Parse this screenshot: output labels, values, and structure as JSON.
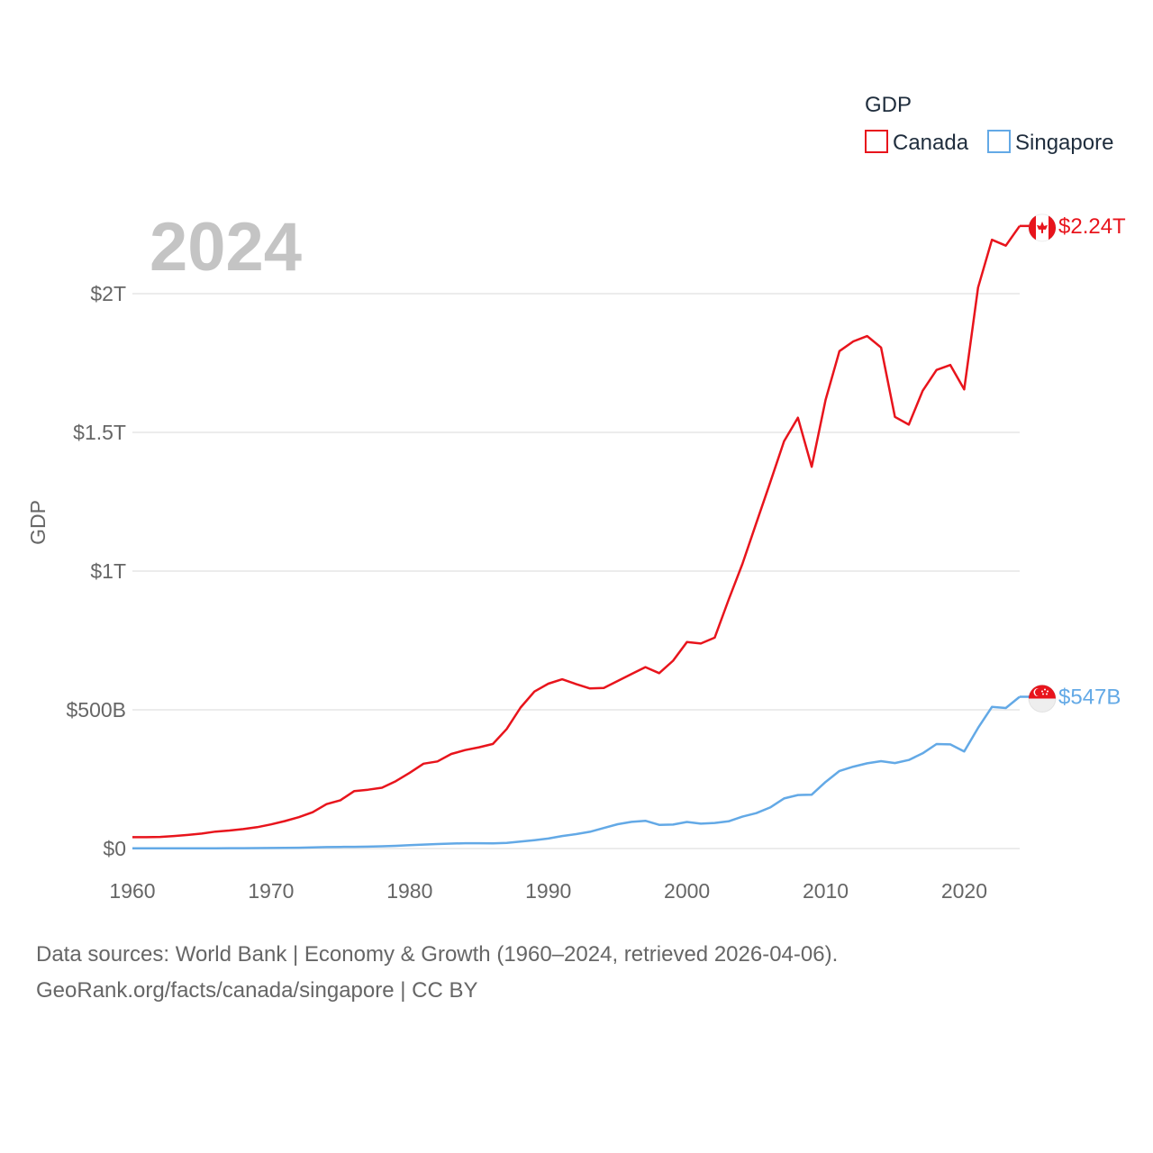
{
  "chart_data": {
    "type": "line",
    "title": "GDP",
    "ylabel": "GDP",
    "xlabel": "",
    "current_year_label": "2024",
    "x": [
      1960,
      1961,
      1962,
      1963,
      1964,
      1965,
      1966,
      1967,
      1968,
      1969,
      1970,
      1971,
      1972,
      1973,
      1974,
      1975,
      1976,
      1977,
      1978,
      1979,
      1980,
      1981,
      1982,
      1983,
      1984,
      1985,
      1986,
      1987,
      1988,
      1989,
      1990,
      1991,
      1992,
      1993,
      1994,
      1995,
      1996,
      1997,
      1998,
      1999,
      2000,
      2001,
      2002,
      2003,
      2004,
      2005,
      2006,
      2007,
      2008,
      2009,
      2010,
      2011,
      2012,
      2013,
      2014,
      2015,
      2016,
      2017,
      2018,
      2019,
      2020,
      2021,
      2022,
      2023,
      2024
    ],
    "xlim": [
      1960,
      2024
    ],
    "ylim": [
      0,
      2.3
    ],
    "y_unit": "trillion USD",
    "x_ticks": [
      1960,
      1970,
      1980,
      1990,
      2000,
      2010,
      2020
    ],
    "x_tick_labels": [
      "1960",
      "1970",
      "1980",
      "1990",
      "2000",
      "2010",
      "2020"
    ],
    "y_ticks": [
      0,
      0.5,
      1,
      1.5,
      2
    ],
    "y_tick_labels": [
      "$0",
      "$500B",
      "$1T",
      "$1.5T",
      "$2T"
    ],
    "grid": true,
    "legend_position": "top-right",
    "series": [
      {
        "name": "Canada",
        "color": "#e8141c",
        "end_label": "$2.24T",
        "flag": "canada-flag-icon",
        "values": [
          0.041,
          0.041,
          0.042,
          0.045,
          0.049,
          0.054,
          0.061,
          0.065,
          0.07,
          0.077,
          0.087,
          0.099,
          0.113,
          0.131,
          0.16,
          0.174,
          0.207,
          0.212,
          0.219,
          0.243,
          0.273,
          0.306,
          0.314,
          0.341,
          0.355,
          0.365,
          0.377,
          0.431,
          0.508,
          0.566,
          0.594,
          0.61,
          0.593,
          0.577,
          0.579,
          0.604,
          0.629,
          0.654,
          0.632,
          0.677,
          0.744,
          0.739,
          0.76,
          0.896,
          1.026,
          1.173,
          1.319,
          1.468,
          1.553,
          1.376,
          1.617,
          1.793,
          1.828,
          1.847,
          1.806,
          1.556,
          1.528,
          1.65,
          1.725,
          1.743,
          1.655,
          2.022,
          2.194,
          2.173,
          2.244
        ]
      },
      {
        "name": "Singapore",
        "color": "#63a9e6",
        "end_label": "$547B",
        "flag": "singapore-flag-icon",
        "values": [
          0.0007,
          0.0008,
          0.0009,
          0.001,
          0.0009,
          0.001,
          0.0011,
          0.0012,
          0.0013,
          0.0016,
          0.0019,
          0.0023,
          0.003,
          0.0042,
          0.0052,
          0.0059,
          0.0062,
          0.0067,
          0.008,
          0.0096,
          0.0119,
          0.0142,
          0.0161,
          0.0178,
          0.0193,
          0.019,
          0.0184,
          0.0204,
          0.025,
          0.0301,
          0.0362,
          0.0452,
          0.0521,
          0.0605,
          0.0739,
          0.0876,
          0.0961,
          0.1,
          0.0853,
          0.0864,
          0.0959,
          0.0896,
          0.0921,
          0.0979,
          0.115,
          0.1275,
          0.148,
          0.1806,
          0.1929,
          0.1941,
          0.2398,
          0.2797,
          0.2951,
          0.3071,
          0.3149,
          0.3082,
          0.3192,
          0.3431,
          0.3767,
          0.3753,
          0.35,
          0.4348,
          0.5105,
          0.5065,
          0.547
        ]
      }
    ]
  },
  "legend": {
    "title": "GDP",
    "items": [
      "Canada",
      "Singapore"
    ]
  },
  "footer": {
    "line1": "Data sources: World Bank | Economy & Growth (1960–2024, retrieved 2026-04-06).",
    "line2": "GeoRank.org/facts/canada/singapore | CC BY"
  }
}
